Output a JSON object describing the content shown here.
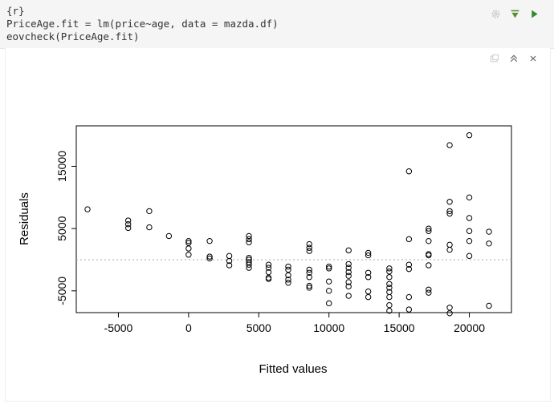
{
  "chunk": {
    "lang_tag": "{r}",
    "code_lines": [
      "PriceAge.fit = lm(price~age, data = mazda.df)",
      "eovcheck(PriceAge.fit)"
    ],
    "tools": [
      "gear-icon",
      "run-above-icon",
      "run-chunk-icon"
    ]
  },
  "output": {
    "tools": [
      "show-in-window-icon",
      "collapse-output-icon",
      "clear-output-icon"
    ]
  },
  "chart_data": {
    "type": "scatter",
    "xlabel": "Fitted values",
    "ylabel": "Residuals",
    "xticks": [
      -5000,
      0,
      5000,
      10000,
      15000,
      20000
    ],
    "yticks": [
      -5000,
      5000,
      15000
    ],
    "xlim": [
      -8000,
      23000
    ],
    "ylim": [
      -8500,
      21500
    ],
    "reference_line_y": 0,
    "points": [
      [
        -7200,
        8100
      ],
      [
        -4300,
        6300
      ],
      [
        -4300,
        5700
      ],
      [
        -4300,
        5100
      ],
      [
        -2800,
        7800
      ],
      [
        -2800,
        5200
      ],
      [
        -1400,
        3800
      ],
      [
        0,
        3000
      ],
      [
        0,
        2700
      ],
      [
        0,
        1800
      ],
      [
        0,
        800
      ],
      [
        1500,
        3000
      ],
      [
        1500,
        500
      ],
      [
        1500,
        200
      ],
      [
        2900,
        600
      ],
      [
        2900,
        -200
      ],
      [
        2900,
        -900
      ],
      [
        4300,
        3800
      ],
      [
        4300,
        3300
      ],
      [
        4300,
        2800
      ],
      [
        4300,
        300
      ],
      [
        4300,
        0
      ],
      [
        4300,
        -400
      ],
      [
        4300,
        -800
      ],
      [
        4300,
        -1300
      ],
      [
        5700,
        -800
      ],
      [
        5700,
        -1300
      ],
      [
        5700,
        -2000
      ],
      [
        5700,
        -2900
      ],
      [
        5700,
        -3100
      ],
      [
        7100,
        -1100
      ],
      [
        7100,
        -1600
      ],
      [
        7100,
        -2500
      ],
      [
        7100,
        -3200
      ],
      [
        7100,
        -3700
      ],
      [
        8600,
        2500
      ],
      [
        8600,
        1900
      ],
      [
        8600,
        1400
      ],
      [
        8600,
        -1600
      ],
      [
        8600,
        -2100
      ],
      [
        8600,
        -2800
      ],
      [
        8600,
        -4200
      ],
      [
        8600,
        -4500
      ],
      [
        10000,
        -1100
      ],
      [
        10000,
        -1400
      ],
      [
        10000,
        -3500
      ],
      [
        10000,
        -5000
      ],
      [
        10000,
        -7000
      ],
      [
        11400,
        1500
      ],
      [
        11400,
        -700
      ],
      [
        11400,
        -1300
      ],
      [
        11400,
        -2000
      ],
      [
        11400,
        -2600
      ],
      [
        11400,
        -3600
      ],
      [
        11400,
        -4300
      ],
      [
        11400,
        -5800
      ],
      [
        12800,
        1100
      ],
      [
        12800,
        700
      ],
      [
        12800,
        -2100
      ],
      [
        12800,
        -2800
      ],
      [
        12800,
        -5100
      ],
      [
        12800,
        -6000
      ],
      [
        14300,
        -1400
      ],
      [
        14300,
        -1900
      ],
      [
        14300,
        -2800
      ],
      [
        14300,
        -3900
      ],
      [
        14300,
        -4500
      ],
      [
        14300,
        -5200
      ],
      [
        14300,
        -6000
      ],
      [
        14300,
        -7300
      ],
      [
        14300,
        -8200
      ],
      [
        15700,
        14200
      ],
      [
        15700,
        3300
      ],
      [
        15700,
        -800
      ],
      [
        15700,
        -1500
      ],
      [
        15700,
        -6000
      ],
      [
        15700,
        -8000
      ],
      [
        17100,
        5000
      ],
      [
        17100,
        4600
      ],
      [
        17100,
        3000
      ],
      [
        17100,
        900
      ],
      [
        17100,
        700
      ],
      [
        17100,
        -900
      ],
      [
        17100,
        -4800
      ],
      [
        17100,
        -5300
      ],
      [
        18600,
        18400
      ],
      [
        18600,
        9300
      ],
      [
        18600,
        7800
      ],
      [
        18600,
        7400
      ],
      [
        18600,
        2400
      ],
      [
        18600,
        1600
      ],
      [
        18600,
        -7700
      ],
      [
        18600,
        -8600
      ],
      [
        20000,
        20000
      ],
      [
        20000,
        10000
      ],
      [
        20000,
        6700
      ],
      [
        20000,
        4600
      ],
      [
        20000,
        3000
      ],
      [
        20000,
        600
      ],
      [
        21400,
        4500
      ],
      [
        21400,
        2600
      ],
      [
        21400,
        -7400
      ]
    ]
  }
}
